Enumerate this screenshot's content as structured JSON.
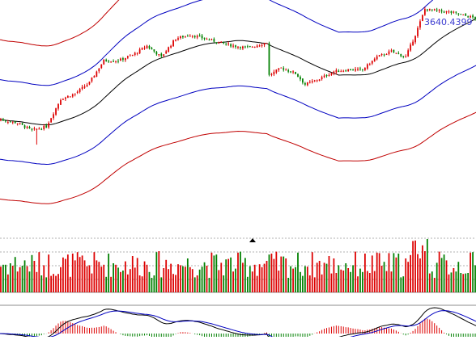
{
  "chart_data": {
    "type": "candlestick",
    "price_readout": "3640.4399",
    "colors": {
      "up": "#dd0000",
      "down": "#008000",
      "ma_line": "#000000",
      "inner_band": "#0000c0",
      "outer_band": "#c00000",
      "macd_line": "#000000",
      "signal_line": "#0000c0",
      "grid": "#666666"
    },
    "price_range": [
      2540,
      3750
    ],
    "volume_range": [
      0,
      1
    ],
    "candles": [],
    "volume": [],
    "macd": []
  }
}
